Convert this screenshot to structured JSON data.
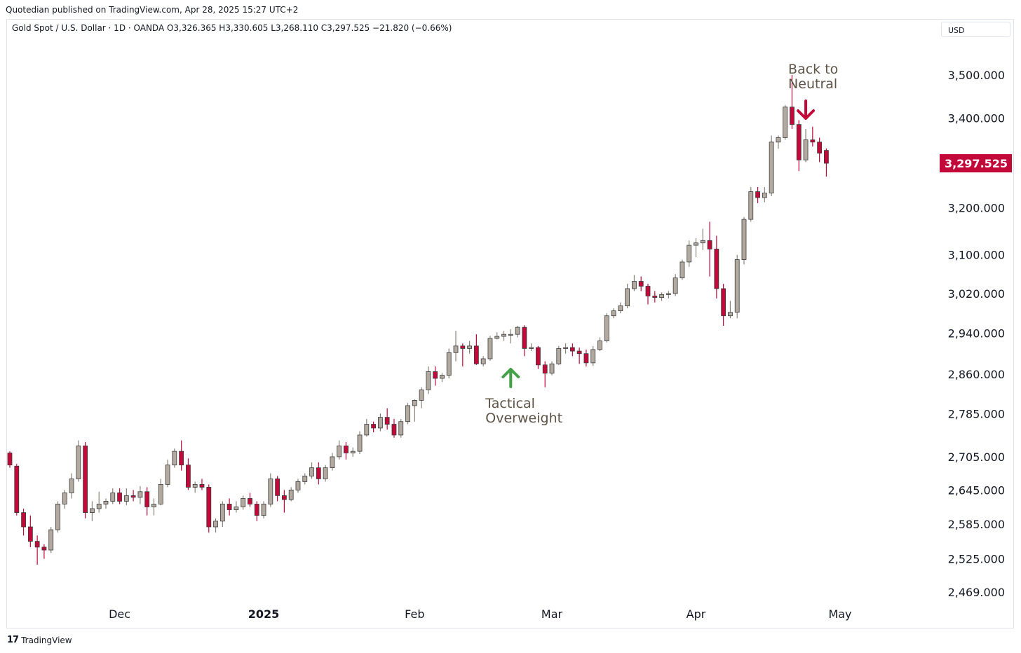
{
  "header": {
    "published": "Quotedian published on TradingView.com, Apr 28, 2025 15:27 UTC+2",
    "legend": "Gold Spot / U.S. Dollar · 1D · OANDA  O3,326.365  H3,330.605  L3,268.110  C3,297.525  −21.820 (−0.66%)",
    "currency": "USD"
  },
  "footer": {
    "brand": "TradingView",
    "logo_glyph": "17"
  },
  "chart_data": {
    "type": "candlestick",
    "title": "Gold Spot / U.S. Dollar",
    "interval": "1D",
    "source": "OANDA",
    "scale": "log",
    "ylim": [
      2440,
      3600
    ],
    "yticks": [
      {
        "value": 3500,
        "label": "3,500.000"
      },
      {
        "value": 3400,
        "label": "3,400.000"
      },
      {
        "value": 3200,
        "label": "3,200.000"
      },
      {
        "value": 3100,
        "label": "3,100.000"
      },
      {
        "value": 3020,
        "label": "3,020.000"
      },
      {
        "value": 2940,
        "label": "2,940.000"
      },
      {
        "value": 2860,
        "label": "2,860.000"
      },
      {
        "value": 2785,
        "label": "2,785.000"
      },
      {
        "value": 2705,
        "label": "2,705.000"
      },
      {
        "value": 2645,
        "label": "2,645.000"
      },
      {
        "value": 2585,
        "label": "2,585.000"
      },
      {
        "value": 2525,
        "label": "2,525.000"
      },
      {
        "value": 2469,
        "label": "2,469.000"
      }
    ],
    "xticks": [
      {
        "label": "Dec",
        "index": 16,
        "bold": false
      },
      {
        "label": "2025",
        "index": 37,
        "bold": true
      },
      {
        "label": "Feb",
        "index": 59,
        "bold": false
      },
      {
        "label": "Mar",
        "index": 79,
        "bold": false
      },
      {
        "label": "Apr",
        "index": 100,
        "bold": false
      },
      {
        "label": "May",
        "index": 121,
        "bold": false
      }
    ],
    "last_price": {
      "value": 3297.525,
      "label": "3,297.525"
    },
    "colors": {
      "up": "#b2aaa0",
      "down": "#c2093a",
      "up_arrow": "#43a047",
      "down_arrow": "#c2093a"
    },
    "annotations": [
      {
        "lines": [
          "Tactical",
          "Overweight"
        ],
        "arrow": "up",
        "arrow_index": 73,
        "arrow_value": 2852
      },
      {
        "lines": [
          "Back to",
          "Neutral"
        ],
        "arrow": "down",
        "arrow_index": 116,
        "arrow_value": 3415
      }
    ],
    "ohlc": [
      [
        2712,
        2715,
        2685,
        2690
      ],
      [
        2688,
        2692,
        2600,
        2605
      ],
      [
        2605,
        2612,
        2565,
        2580
      ],
      [
        2580,
        2600,
        2545,
        2555
      ],
      [
        2555,
        2565,
        2515,
        2545
      ],
      [
        2545,
        2550,
        2525,
        2540
      ],
      [
        2540,
        2580,
        2535,
        2575
      ],
      [
        2575,
        2625,
        2570,
        2620
      ],
      [
        2620,
        2645,
        2612,
        2640
      ],
      [
        2640,
        2675,
        2630,
        2665
      ],
      [
        2665,
        2735,
        2660,
        2725
      ],
      [
        2725,
        2732,
        2595,
        2605
      ],
      [
        2605,
        2625,
        2590,
        2612
      ],
      [
        2612,
        2642,
        2605,
        2620
      ],
      [
        2620,
        2630,
        2612,
        2625
      ],
      [
        2625,
        2648,
        2620,
        2640
      ],
      [
        2640,
        2648,
        2620,
        2625
      ],
      [
        2625,
        2648,
        2618,
        2635
      ],
      [
        2635,
        2645,
        2625,
        2632
      ],
      [
        2632,
        2652,
        2620,
        2642
      ],
      [
        2642,
        2650,
        2600,
        2615
      ],
      [
        2615,
        2630,
        2600,
        2620
      ],
      [
        2620,
        2665,
        2618,
        2655
      ],
      [
        2655,
        2700,
        2650,
        2690
      ],
      [
        2690,
        2720,
        2685,
        2715
      ],
      [
        2715,
        2735,
        2680,
        2690
      ],
      [
        2690,
        2702,
        2645,
        2650
      ],
      [
        2650,
        2660,
        2640,
        2655
      ],
      [
        2655,
        2665,
        2645,
        2650
      ],
      [
        2650,
        2655,
        2570,
        2580
      ],
      [
        2580,
        2595,
        2570,
        2590
      ],
      [
        2590,
        2625,
        2580,
        2620
      ],
      [
        2620,
        2630,
        2600,
        2610
      ],
      [
        2610,
        2625,
        2605,
        2615
      ],
      [
        2615,
        2635,
        2610,
        2630
      ],
      [
        2630,
        2640,
        2615,
        2620
      ],
      [
        2620,
        2625,
        2590,
        2600
      ],
      [
        2600,
        2625,
        2595,
        2620
      ],
      [
        2620,
        2675,
        2615,
        2665
      ],
      [
        2665,
        2670,
        2625,
        2635
      ],
      [
        2635,
        2645,
        2605,
        2628
      ],
      [
        2628,
        2650,
        2625,
        2645
      ],
      [
        2645,
        2665,
        2640,
        2660
      ],
      [
        2660,
        2675,
        2655,
        2670
      ],
      [
        2670,
        2695,
        2665,
        2685
      ],
      [
        2685,
        2695,
        2655,
        2665
      ],
      [
        2665,
        2690,
        2660,
        2685
      ],
      [
        2685,
        2712,
        2680,
        2705
      ],
      [
        2705,
        2735,
        2700,
        2725
      ],
      [
        2725,
        2732,
        2700,
        2712
      ],
      [
        2712,
        2722,
        2705,
        2715
      ],
      [
        2715,
        2752,
        2710,
        2745
      ],
      [
        2745,
        2775,
        2742,
        2765
      ],
      [
        2765,
        2770,
        2750,
        2758
      ],
      [
        2758,
        2785,
        2752,
        2778
      ],
      [
        2778,
        2795,
        2755,
        2765
      ],
      [
        2765,
        2775,
        2740,
        2745
      ],
      [
        2745,
        2775,
        2740,
        2770
      ],
      [
        2770,
        2805,
        2765,
        2800
      ],
      [
        2800,
        2812,
        2770,
        2810
      ],
      [
        2810,
        2835,
        2795,
        2830
      ],
      [
        2830,
        2875,
        2822,
        2865
      ],
      [
        2865,
        2875,
        2838,
        2852
      ],
      [
        2852,
        2862,
        2845,
        2858
      ],
      [
        2858,
        2910,
        2852,
        2902
      ],
      [
        2902,
        2945,
        2885,
        2915
      ],
      [
        2915,
        2920,
        2875,
        2910
      ],
      [
        2910,
        2925,
        2900,
        2915
      ],
      [
        2915,
        2938,
        2878,
        2880
      ],
      [
        2880,
        2895,
        2875,
        2890
      ],
      [
        2890,
        2935,
        2886,
        2930
      ],
      [
        2930,
        2942,
        2928,
        2934
      ],
      [
        2934,
        2945,
        2925,
        2938
      ],
      [
        2938,
        2948,
        2920,
        2938
      ],
      [
        2938,
        2955,
        2932,
        2952
      ],
      [
        2952,
        2956,
        2895,
        2910
      ],
      [
        2910,
        2920,
        2905,
        2912
      ],
      [
        2912,
        2915,
        2870,
        2878
      ],
      [
        2878,
        2885,
        2835,
        2862
      ],
      [
        2862,
        2885,
        2858,
        2880
      ],
      [
        2880,
        2915,
        2878,
        2910
      ],
      [
        2910,
        2920,
        2900,
        2912
      ],
      [
        2912,
        2920,
        2895,
        2905
      ],
      [
        2905,
        2912,
        2880,
        2900
      ],
      [
        2900,
        2908,
        2875,
        2882
      ],
      [
        2882,
        2915,
        2876,
        2908
      ],
      [
        2908,
        2932,
        2905,
        2925
      ],
      [
        2925,
        2980,
        2922,
        2975
      ],
      [
        2975,
        2990,
        2970,
        2985
      ],
      [
        2985,
        3002,
        2980,
        2995
      ],
      [
        2995,
        3040,
        2990,
        3030
      ],
      [
        3030,
        3058,
        3025,
        3045
      ],
      [
        3045,
        3055,
        3025,
        3035
      ],
      [
        3035,
        3040,
        2998,
        3015
      ],
      [
        3015,
        3025,
        3002,
        3012
      ],
      [
        3012,
        3022,
        3005,
        3018
      ],
      [
        3018,
        3025,
        3010,
        3020
      ],
      [
        3020,
        3060,
        3015,
        3052
      ],
      [
        3052,
        3090,
        3048,
        3085
      ],
      [
        3085,
        3130,
        3075,
        3120
      ],
      [
        3120,
        3135,
        3095,
        3125
      ],
      [
        3125,
        3155,
        3110,
        3130
      ],
      [
        3130,
        3170,
        3055,
        3112
      ],
      [
        3112,
        3140,
        3010,
        3030
      ],
      [
        3030,
        3040,
        2955,
        2975
      ],
      [
        2975,
        3005,
        2970,
        2982
      ],
      [
        2982,
        3100,
        2970,
        3090
      ],
      [
        3090,
        3180,
        3080,
        3175
      ],
      [
        3175,
        3245,
        3170,
        3235
      ],
      [
        3235,
        3245,
        3210,
        3222
      ],
      [
        3222,
        3245,
        3212,
        3232
      ],
      [
        3232,
        3360,
        3225,
        3345
      ],
      [
        3345,
        3360,
        3330,
        3355
      ],
      [
        3355,
        3430,
        3350,
        3425
      ],
      [
        3425,
        3500,
        3375,
        3385
      ],
      [
        3385,
        3395,
        3280,
        3305
      ],
      [
        3305,
        3375,
        3300,
        3350
      ],
      [
        3350,
        3380,
        3335,
        3345
      ],
      [
        3345,
        3355,
        3300,
        3320
      ],
      [
        3326.365,
        3330.605,
        3268.11,
        3297.525
      ]
    ]
  }
}
